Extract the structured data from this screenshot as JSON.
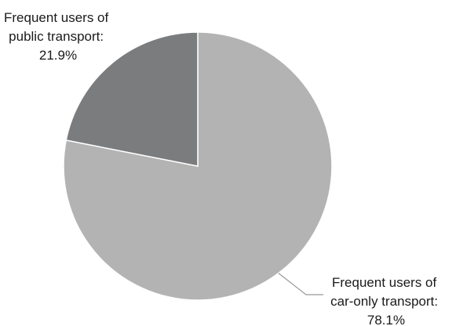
{
  "chart_data": {
    "type": "pie",
    "title": "",
    "start_angle_deg": 90,
    "direction": "clockwise",
    "slices": [
      {
        "label_lines": [
          "Frequent users of",
          "car-only transport:",
          "78.1%"
        ],
        "value": 78.1,
        "color": "#b3b3b3"
      },
      {
        "label_lines": [
          "Frequent users of",
          "public transport:",
          "21.9%"
        ],
        "value": 21.9,
        "color": "#7b7c7e"
      }
    ],
    "legend": "none",
    "label_placement": "outside",
    "edge_color": "#ffffff",
    "leader_line_color": "#999999"
  }
}
